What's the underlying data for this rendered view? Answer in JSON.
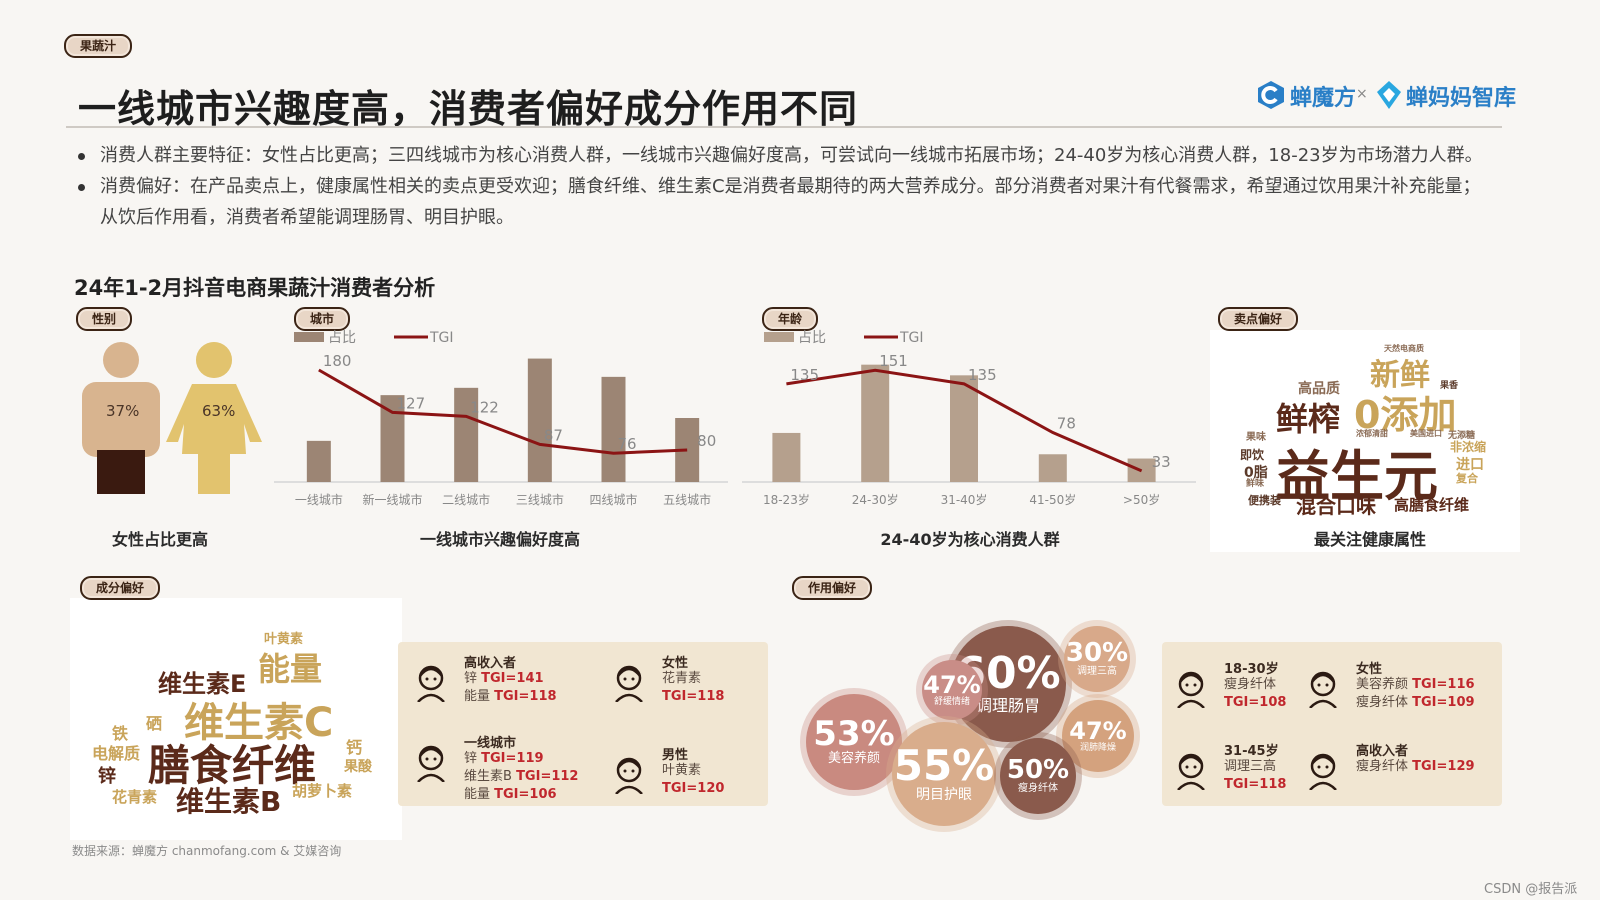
{
  "tag_category": "果蔬汁",
  "title": "一线城市兴趣度高，消费者偏好成分作用不同",
  "brand_left": "蝉魔方",
  "brand_x": "×",
  "brand_right": "蝉妈妈智库",
  "bullets": [
    "消费人群主要特征：女性占比更高；三四线城市为核心消费人群，一线城市兴趣偏好度高，可尝试向一线城市拓展市场；24-40岁为核心消费人群，18-23岁为市场潜力人群。",
    "消费偏好：在产品卖点上，健康属性相关的卖点更受欢迎；膳食纤维、维生素C是消费者最期待的两大营养成分。部分消费者对果汁有代餐需求，希望通过饮用果汁补充能量；从饮后作用看，消费者希望能调理肠胃、明目护眼。"
  ],
  "section_title": "24年1-2月抖音电商果蔬汁消费者分析",
  "gender": {
    "tag": "性别",
    "male_pct": "37%",
    "female_pct": "63%",
    "caption": "女性占比更高",
    "male_value": 0.37,
    "female_value": 0.63,
    "colors": {
      "male": "#d8b48f",
      "female": "#e2c36e",
      "dark": "#3a1a10"
    }
  },
  "legend": {
    "share": "占比",
    "tgi": "TGI"
  },
  "chart_data": [
    {
      "type": "bar",
      "tag": "城市",
      "caption": "一线城市兴趣偏好度高",
      "categories": [
        "一线城市",
        "新一线城市",
        "二线城市",
        "三线城市",
        "四线城市",
        "五线城市"
      ],
      "series": [
        {
          "name": "占比",
          "values": [
            4.5,
            9.5,
            10.3,
            13.5,
            11.5,
            7.0
          ],
          "color": "#9c8574"
        },
        {
          "name": "TGI",
          "values": [
            180,
            127,
            122,
            87,
            76,
            80
          ],
          "color": "#8b1414",
          "labels": [
            "180",
            "127",
            "122",
            "87",
            "76",
            "80"
          ]
        }
      ]
    },
    {
      "type": "bar",
      "tag": "年龄",
      "caption": "24-40岁为核心消费人群",
      "categories": [
        "18-23岁",
        "24-30岁",
        "31-40岁",
        "41-50岁",
        ">50岁"
      ],
      "series": [
        {
          "name": "占比",
          "values": [
            4.6,
            11,
            10,
            2.6,
            2.2
          ],
          "color": "#b5a08d"
        },
        {
          "name": "TGI",
          "values": [
            135,
            151,
            135,
            78,
            33
          ],
          "color": "#8b1414",
          "labels": [
            "135",
            "151",
            "135",
            "78",
            "33"
          ]
        }
      ]
    }
  ],
  "selling": {
    "tag": "卖点偏好",
    "caption": "最关注健康属性",
    "words": [
      {
        "t": "天然电商质",
        "c": "#8a6b55"
      },
      {
        "t": "新鲜",
        "c": "#c9a45a"
      },
      {
        "t": "果香",
        "c": "#5b3a2a"
      },
      {
        "t": "高品质",
        "c": "#8a6b55"
      },
      {
        "t": "鲜榨",
        "c": "#5b2a1a"
      },
      {
        "t": "0添加",
        "c": "#c9a45a"
      },
      {
        "t": "浓郁清甜",
        "c": "#8a6b55"
      },
      {
        "t": "美国进口",
        "c": "#8a6b55"
      },
      {
        "t": "无添糖",
        "c": "#8a6b55"
      },
      {
        "t": "果味",
        "c": "#8a6b55"
      },
      {
        "t": "非浓缩",
        "c": "#c9a45a"
      },
      {
        "t": "即饮",
        "c": "#5b3a2a"
      },
      {
        "t": "益生元",
        "c": "#5b2a1a"
      },
      {
        "t": "进口",
        "c": "#c9a45a"
      },
      {
        "t": "0脂",
        "c": "#5b3a2a"
      },
      {
        "t": "复合",
        "c": "#c9a45a"
      },
      {
        "t": "鲜味",
        "c": "#8a6b55"
      },
      {
        "t": "便携装",
        "c": "#5b3a2a"
      },
      {
        "t": "混合口味",
        "c": "#5b2a1a"
      },
      {
        "t": "高膳食纤维",
        "c": "#5b2a1a"
      }
    ]
  },
  "ingredient": {
    "tag": "成分偏好",
    "words": [
      {
        "t": "叶黄素",
        "c": "#c9a45a"
      },
      {
        "t": "能量",
        "c": "#c9a45a"
      },
      {
        "t": "维生素E",
        "c": "#5b2a1a"
      },
      {
        "t": "维生素C",
        "c": "#c9a45a"
      },
      {
        "t": "铁",
        "c": "#c9a45a"
      },
      {
        "t": "硒",
        "c": "#c9a45a"
      },
      {
        "t": "钙",
        "c": "#c9a45a"
      },
      {
        "t": "电解质",
        "c": "#c9a45a"
      },
      {
        "t": "膳食纤维",
        "c": "#5b2a1a"
      },
      {
        "t": "果酸",
        "c": "#c9a45a"
      },
      {
        "t": "锌",
        "c": "#5b2a1a"
      },
      {
        "t": "花青素",
        "c": "#c9a45a"
      },
      {
        "t": "维生素B",
        "c": "#5b2a1a"
      },
      {
        "t": "胡萝卜素",
        "c": "#c9a45a"
      }
    ],
    "groups": [
      {
        "title": "高收入者",
        "lines": [
          [
            "锌 ",
            "TGI=141"
          ],
          [
            "能量 ",
            "TGI=118"
          ]
        ],
        "icon": "woman-rich-icon"
      },
      {
        "title": "女性",
        "lines": [
          [
            "花青素",
            ""
          ],
          [
            "",
            "TGI=118"
          ]
        ],
        "icon": "woman-icon"
      },
      {
        "title": "一线城市",
        "lines": [
          [
            "锌 ",
            "TGI=119"
          ],
          [
            "维生素B ",
            "TGI=112"
          ],
          [
            "能量 ",
            "TGI=106"
          ]
        ],
        "icon": "curly-hair-woman-icon"
      },
      {
        "title": "男性",
        "lines": [
          [
            "叶黄素",
            ""
          ],
          [
            "",
            "TGI=120"
          ]
        ],
        "icon": "man-icon"
      }
    ]
  },
  "effect": {
    "tag": "作用偏好",
    "bubbles": [
      {
        "pct": "60%",
        "label": "调理肠胃",
        "color": "#8a5a4c"
      },
      {
        "pct": "30%",
        "label": "调理三高",
        "color": "#d8a98a"
      },
      {
        "pct": "47%",
        "label": "舒缓情绪",
        "color": "#c98d87"
      },
      {
        "pct": "53%",
        "label": "美容养颜",
        "color": "#c98a80"
      },
      {
        "pct": "55%",
        "label": "明目护眼",
        "color": "#d9ad8c"
      },
      {
        "pct": "47%",
        "label": "润肺降燥",
        "color": "#d4a27e"
      },
      {
        "pct": "50%",
        "label": "瘦身纤体",
        "color": "#8a5a4c"
      }
    ],
    "groups": [
      {
        "title": "18-30岁",
        "lines": [
          [
            "瘦身纤体",
            ""
          ],
          [
            "",
            "TGI=108"
          ]
        ],
        "icon": "girl-icon"
      },
      {
        "title": "女性",
        "lines": [
          [
            "美容养颜 ",
            "TGI=116"
          ],
          [
            "瘦身纤体 ",
            "TGI=109"
          ]
        ],
        "icon": "woman-icon"
      },
      {
        "title": "31-45岁",
        "lines": [
          [
            "调理三高",
            ""
          ],
          [
            "",
            "TGI=118"
          ]
        ],
        "icon": "curly-hair-woman-icon"
      },
      {
        "title": "高收入者",
        "lines": [
          [
            "瘦身纤体 ",
            "TGI=129"
          ]
        ],
        "icon": "woman-rich-icon"
      }
    ]
  },
  "source": "数据来源：蝉魔方 chanmofang.com & 艾媒咨询",
  "watermark": "CSDN @报告派"
}
